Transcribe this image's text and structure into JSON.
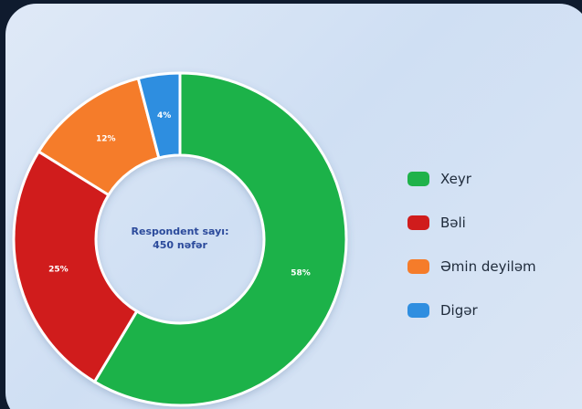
{
  "chart_data": {
    "type": "pie",
    "variant": "donut",
    "center_label": [
      "Respondent sayı:",
      "450 nəfər"
    ],
    "slices": [
      {
        "name": "Xeyr",
        "value": 58,
        "label": "58%",
        "color": "#1fb24a"
      },
      {
        "name": "Bəli",
        "value": 25,
        "label": "25%",
        "color": "#d01c1c"
      },
      {
        "name": "Əmin deyiləm",
        "value": 12,
        "label": "12%",
        "color": "#f57c2a"
      },
      {
        "name": "Digər",
        "value": 4,
        "label": "4%",
        "color": "#2f8ee0"
      }
    ],
    "legend_position": "right"
  }
}
